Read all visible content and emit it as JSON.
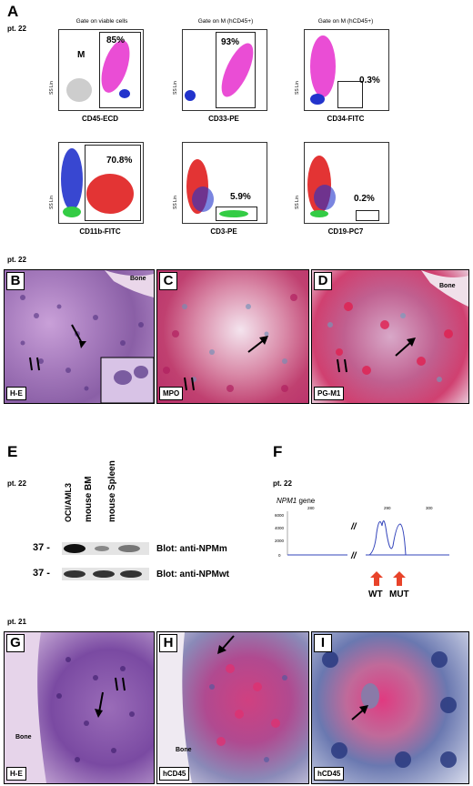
{
  "panels": {
    "A": "A",
    "B": "B",
    "C": "C",
    "D": "D",
    "E": "E",
    "F": "F",
    "G": "G",
    "H": "H",
    "I": "I"
  },
  "patients": {
    "top": "pt. 22",
    "middle": "pt. 22",
    "blot": "pt. 22",
    "seq": "pt. 22",
    "bottom": "pt. 21"
  },
  "flow": {
    "axis_label": "SS Lin",
    "plots": [
      {
        "title": "Gate on viable cells",
        "xlabel": "CD45-ECD",
        "pct": "85%",
        "gate_label": "M"
      },
      {
        "title": "Gate on M (hCD45+)",
        "xlabel": "CD33-PE",
        "pct": "93%"
      },
      {
        "title": "Gate on M (hCD45+)",
        "xlabel": "CD34-FITC",
        "pct": "0.3%"
      },
      {
        "title": "",
        "xlabel": "CD11b-FITC",
        "pct": "70.8%"
      },
      {
        "title": "",
        "xlabel": "CD3-PE",
        "pct": "5.9%"
      },
      {
        "title": "",
        "xlabel": "CD19-PC7",
        "pct": "0.2%"
      }
    ],
    "colors": {
      "magenta": "#e83ad0",
      "blue": "#2233cc",
      "red": "#e01e1e",
      "green": "#33cc44",
      "gray": "#b0b0b0"
    }
  },
  "histology": {
    "B": {
      "stain": "H-E",
      "bone": "Bone"
    },
    "C": {
      "stain": "MPO"
    },
    "D": {
      "stain": "PG-M1",
      "bone": "Bone"
    },
    "G": {
      "stain": "H-E",
      "bone": "Bone"
    },
    "H": {
      "stain": "hCD45",
      "bone": "Bone"
    },
    "I": {
      "stain": "hCD45"
    }
  },
  "blot": {
    "lanes": [
      "OCI/AML3",
      "mouse BM",
      "mouse Spleen"
    ],
    "rows": [
      {
        "mw": "37 -",
        "label": "Blot: anti-NPMm"
      },
      {
        "mw": "37 -",
        "label": "Blot: anti-NPMwt"
      }
    ]
  },
  "sequencing": {
    "gene": "NPM1",
    "gene_suffix": " gene",
    "y_ticks": [
      "6000",
      "4000",
      "2000",
      "0"
    ],
    "x_ticks": [
      "280",
      "290",
      "300"
    ],
    "break": "//",
    "arrows": [
      "WT",
      "MUT"
    ]
  }
}
